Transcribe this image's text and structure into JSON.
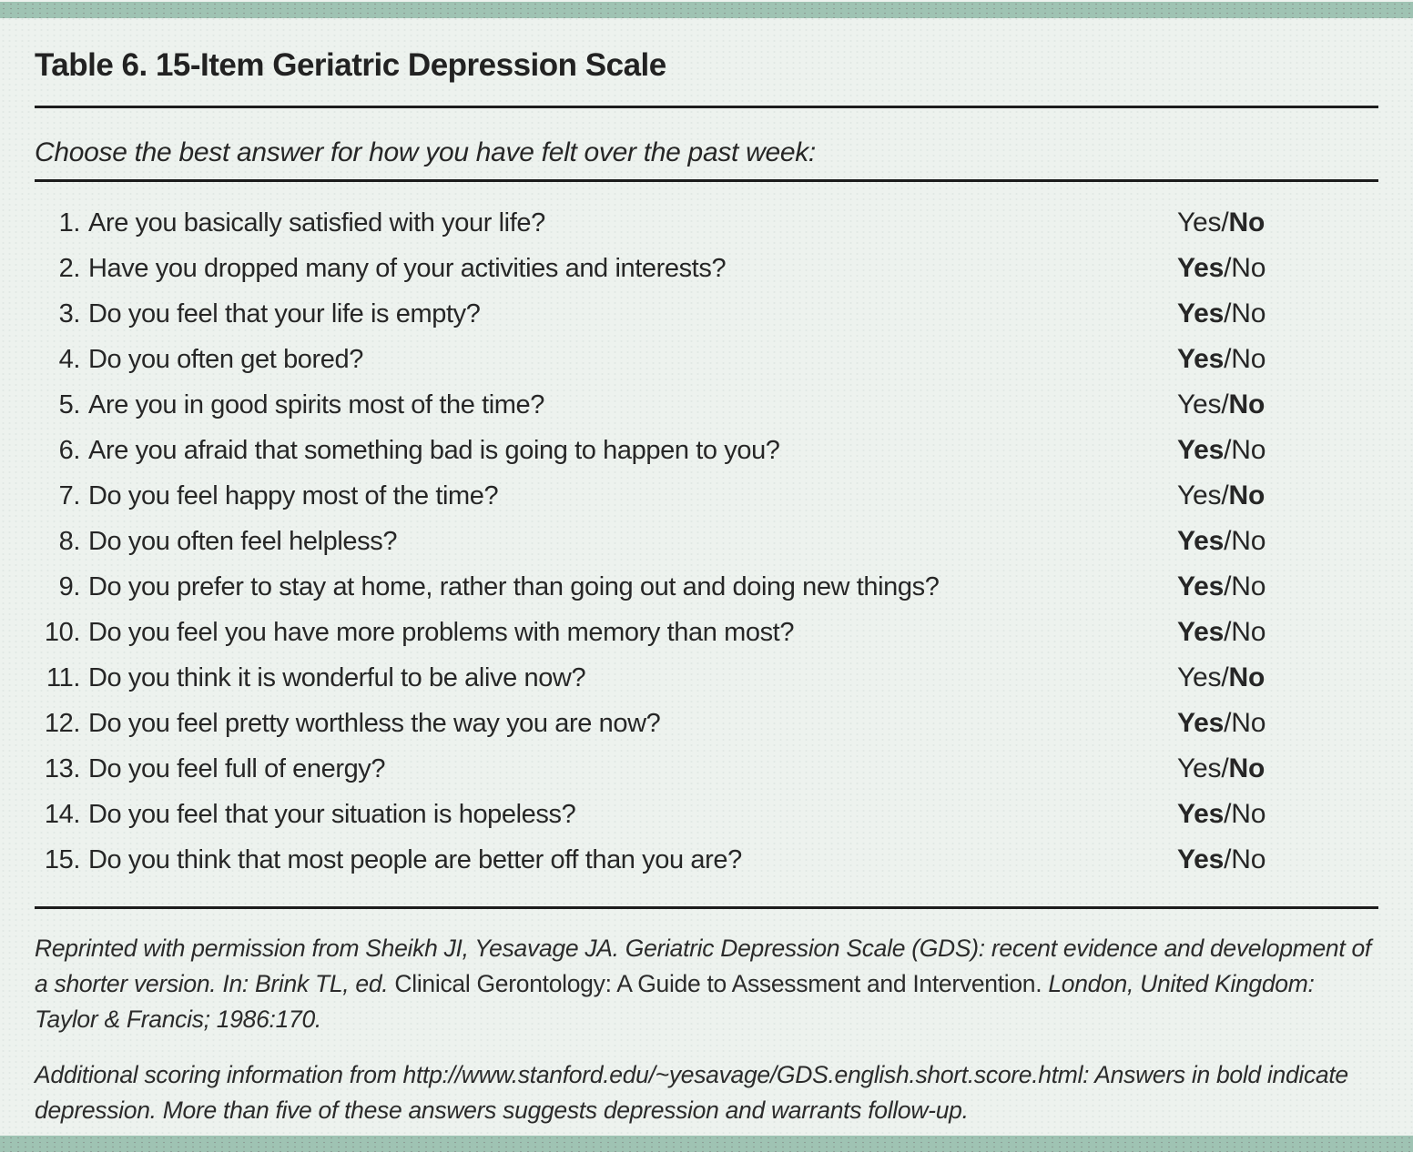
{
  "figure": {
    "title": "Table 6. 15-Item Geriatric Depression Scale",
    "instruction": "Choose the best answer for how you have felt over the past week:",
    "answer_separator": "/",
    "questions": [
      {
        "number": "1.",
        "text": "Are you basically satisfied with your life?",
        "options": [
          "Yes",
          "No"
        ],
        "bold_option": "No"
      },
      {
        "number": "2.",
        "text": "Have you dropped many of your activities and interests?",
        "options": [
          "Yes",
          "No"
        ],
        "bold_option": "Yes"
      },
      {
        "number": "3.",
        "text": "Do you feel that your life is empty?",
        "options": [
          "Yes",
          "No"
        ],
        "bold_option": "Yes"
      },
      {
        "number": "4.",
        "text": "Do you often get bored?",
        "options": [
          "Yes",
          "No"
        ],
        "bold_option": "Yes"
      },
      {
        "number": "5.",
        "text": "Are you in good spirits most of the time?",
        "options": [
          "Yes",
          "No"
        ],
        "bold_option": "No"
      },
      {
        "number": "6.",
        "text": "Are you afraid that something bad is going to happen to you?",
        "options": [
          "Yes",
          "No"
        ],
        "bold_option": "Yes"
      },
      {
        "number": "7.",
        "text": "Do you feel happy most of the time?",
        "options": [
          "Yes",
          "No"
        ],
        "bold_option": "No"
      },
      {
        "number": "8.",
        "text": "Do you often feel helpless?",
        "options": [
          "Yes",
          "No"
        ],
        "bold_option": "Yes"
      },
      {
        "number": "9.",
        "text": "Do you prefer to stay at home, rather than going out and doing new things?",
        "options": [
          "Yes",
          "No"
        ],
        "bold_option": "Yes"
      },
      {
        "number": "10.",
        "text": "Do you feel you have more problems with memory than most?",
        "options": [
          "Yes",
          "No"
        ],
        "bold_option": "Yes"
      },
      {
        "number": "11.",
        "text": "Do you think it is wonderful to be alive now?",
        "options": [
          "Yes",
          "No"
        ],
        "bold_option": "No"
      },
      {
        "number": "12.",
        "text": "Do you feel pretty worthless the way you are now?",
        "options": [
          "Yes",
          "No"
        ],
        "bold_option": "Yes"
      },
      {
        "number": "13.",
        "text": "Do you feel full of energy?",
        "options": [
          "Yes",
          "No"
        ],
        "bold_option": "No"
      },
      {
        "number": "14.",
        "text": "Do you feel that your situation is hopeless?",
        "options": [
          "Yes",
          "No"
        ],
        "bold_option": "Yes"
      },
      {
        "number": "15.",
        "text": "Do you think that most people are better off than you are?",
        "options": [
          "Yes",
          "No"
        ],
        "bold_option": "Yes"
      }
    ],
    "footnotes": [
      {
        "segments": [
          {
            "text": "Reprinted with permission from Sheikh JI, Yesavage JA. Geriatric Depression Scale (GDS): recent evidence and development of a shorter version. In: Brink TL, ed. ",
            "italic": true
          },
          {
            "text": "Clinical Gerontology: A Guide to Assessment and Intervention.",
            "italic": false
          },
          {
            "text": " London, United Kingdom: Taylor & Francis; 1986:170.",
            "italic": true
          }
        ]
      },
      {
        "segments": [
          {
            "text": "Additional scoring information from http://www.stanford.edu/~yesavage/GDS.english.short.score.html: Answers in bold indicate depression. More than five of these answers suggests depression and warrants follow-up.",
            "italic": true
          }
        ]
      }
    ],
    "colors": {
      "accent_bar": "#9fc3b3",
      "background": "#edf2ee",
      "text": "#262626",
      "rule": "#1c1c1c"
    }
  }
}
